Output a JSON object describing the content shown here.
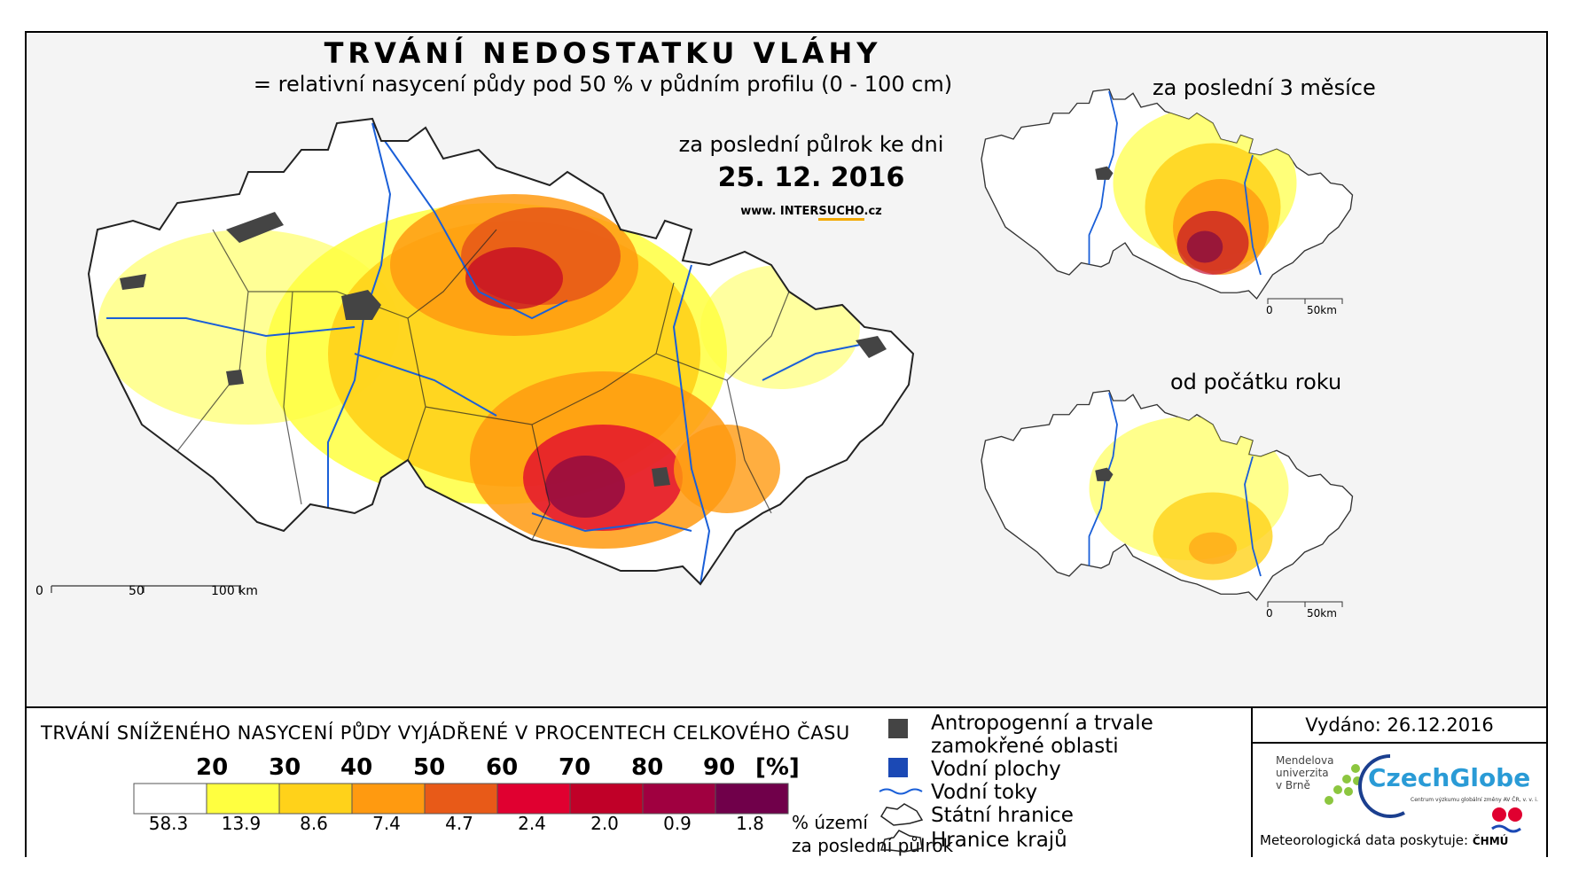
{
  "title": "TRVÁNÍ NEDOSTATKU VLÁHY",
  "subtitle": "= relativní nasycení půdy pod 50 % v půdním profilu (0 - 100 cm)",
  "period_label": "za poslední půlrok ke dni",
  "date": "25. 12. 2016",
  "website": {
    "prefix": "www. INTER",
    "highlight": "SUCHO",
    "suffix": ".cz"
  },
  "main_scale": {
    "labels": [
      "0",
      "50",
      "100 km"
    ]
  },
  "inset_3months": {
    "title": "za poslední 3 měsíce",
    "scale_labels": [
      "0",
      "50km"
    ]
  },
  "inset_year": {
    "title": "od počátku roku",
    "scale_labels": [
      "0",
      "50km"
    ]
  },
  "colors": {
    "classes": [
      "#ffffff",
      "#ffff40",
      "#ffd21a",
      "#ff9a10",
      "#e85a18",
      "#e00030",
      "#c00028",
      "#a00040",
      "#70004a"
    ],
    "river": "#1a5fd8",
    "anthropogenic": "#444444",
    "water_body": "#1b49b5"
  },
  "legend": {
    "title": "TRVÁNÍ SNÍŽENÉHO NASYCENÍ PŮDY VYJÁDŘENÉ V PROCENTECH CELKOVÉHO ČASU",
    "thresholds": [
      "20",
      "30",
      "40",
      "50",
      "60",
      "70",
      "80",
      "90"
    ],
    "unit": "[%]",
    "percent_territory": [
      "58.3",
      "13.9",
      "8.6",
      "7.4",
      "4.7",
      "2.4",
      "2.0",
      "0.9",
      "1.8"
    ],
    "percent_note_1": "% území",
    "percent_note_2": "za poslední půlrok"
  },
  "key": {
    "anthropogenic_1": "Antropogenní a trvale",
    "anthropogenic_2": "zamokřené oblasti",
    "water_bodies": "Vodní plochy",
    "rivers": "Vodní toky",
    "state_border": "Státní hranice",
    "regions_border": "Hranice krajů"
  },
  "issued": "Vydáno: 26.12.2016",
  "mendel": [
    "Mendelova",
    "univerzita",
    "v Brně"
  ],
  "czechglobe": "CzechGlobe",
  "czechglobe_sub": "Centrum výzkumu globální změny AV ČR, v. v. i.",
  "meteo_label": "Meteorologická data poskytuje:",
  "chmu": "ČHMÚ"
}
